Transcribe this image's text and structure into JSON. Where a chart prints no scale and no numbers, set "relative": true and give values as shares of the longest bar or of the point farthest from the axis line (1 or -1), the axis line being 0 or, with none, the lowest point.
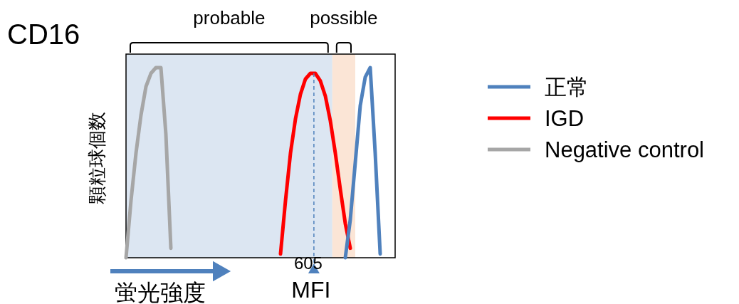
{
  "chart_data": {
    "type": "line",
    "title": "CD16",
    "xlabel": "蛍光強度",
    "ylabel": "顆粒球個数",
    "relative": true,
    "legend": "right",
    "categories": [
      null,
      null,
      null,
      null,
      null,
      null,
      null,
      null,
      null,
      null,
      null,
      null,
      null,
      null,
      null,
      null,
      null,
      null,
      null,
      null,
      null,
      null,
      null,
      null,
      null,
      null,
      null,
      null,
      null,
      null,
      null,
      null,
      null,
      null,
      null,
      null,
      null,
      null,
      null,
      null,
      null,
      null,
      null,
      null,
      null,
      null,
      null,
      null,
      null,
      null,
      null,
      null,
      null,
      null,
      null
    ],
    "series": [
      {
        "name": "正常",
        "color": "#4f81bd",
        "values": [
          null,
          null,
          null,
          null,
          null,
          null,
          null,
          null,
          null,
          null,
          null,
          null,
          null,
          null,
          null,
          null,
          null,
          null,
          null,
          null,
          null,
          null,
          null,
          null,
          null,
          null,
          null,
          null,
          null,
          null,
          null,
          null,
          null,
          null,
          null,
          null,
          null,
          null,
          null,
          null,
          null,
          null,
          null,
          null,
          0,
          0.2,
          0.5,
          0.8,
          0.95,
          1,
          0.55,
          0.02,
          null,
          null,
          null
        ]
      },
      {
        "name": "IGD",
        "color": "#ff0000",
        "values": [
          null,
          null,
          null,
          null,
          null,
          null,
          null,
          null,
          null,
          null,
          null,
          null,
          null,
          null,
          null,
          null,
          null,
          null,
          null,
          null,
          null,
          null,
          null,
          null,
          null,
          null,
          null,
          null,
          null,
          null,
          null,
          0.02,
          0.3,
          0.55,
          0.73,
          0.86,
          0.94,
          0.97,
          0.97,
          0.93,
          0.85,
          0.72,
          0.55,
          0.36,
          0.18,
          0.05,
          null,
          null,
          null,
          null,
          null,
          null,
          null,
          null,
          null
        ]
      },
      {
        "name": "Negative control",
        "color": "#a6a6a6",
        "values": [
          0,
          0.3,
          0.55,
          0.75,
          0.9,
          0.97,
          1,
          1,
          0.65,
          0.05,
          null,
          null,
          null,
          null,
          null,
          null,
          null,
          null,
          null,
          null,
          null,
          null,
          null,
          null,
          null,
          null,
          null,
          null,
          null,
          null,
          null,
          null,
          null,
          null,
          null,
          null,
          null,
          null,
          null,
          null,
          null,
          null,
          null,
          null,
          null,
          null,
          null,
          null,
          null,
          null,
          null,
          null,
          null,
          null,
          null
        ]
      }
    ],
    "annotations": [
      "probable",
      "possible",
      "605",
      "MFI"
    ]
  }
}
